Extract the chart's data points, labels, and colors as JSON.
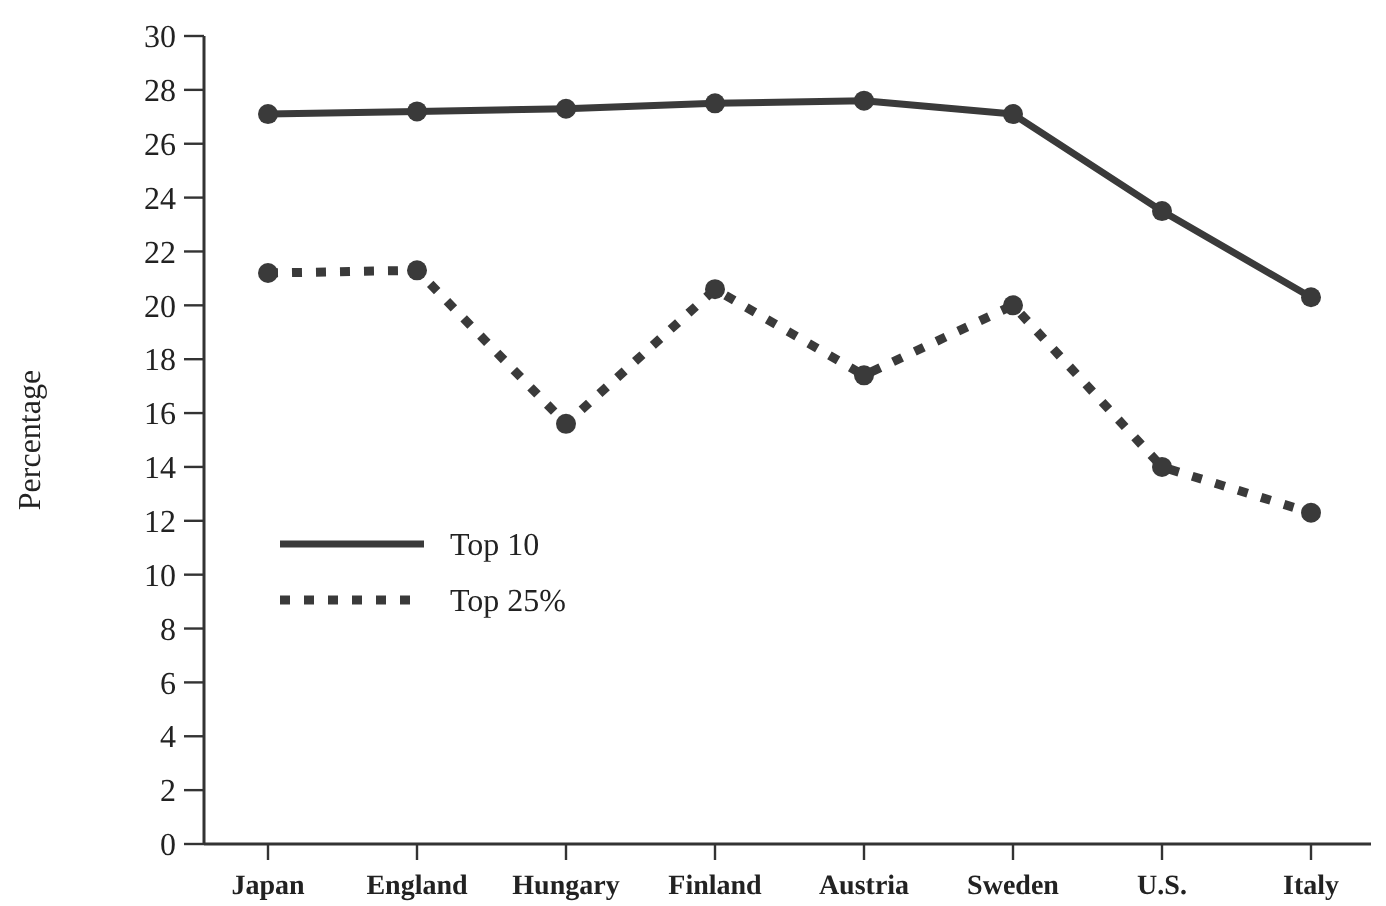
{
  "chart_data": {
    "type": "line",
    "ylabel": "Percentage",
    "categories": [
      "Japan",
      "England",
      "Hungary",
      "Finland",
      "Austria",
      "Sweden",
      "U.S.",
      "Italy"
    ],
    "series": [
      {
        "name": "Top 10",
        "color": "#3a3a3a",
        "line_style": "solid",
        "values": [
          27.1,
          27.2,
          27.3,
          27.5,
          27.6,
          27.1,
          23.5,
          20.3
        ]
      },
      {
        "name": "Top 25%",
        "color": "#3a3a3a",
        "line_style": "dotted",
        "values": [
          21.2,
          21.3,
          15.6,
          20.6,
          17.4,
          20.0,
          14.0,
          12.3
        ]
      }
    ],
    "ylim": [
      0,
      30
    ],
    "yticks": [
      0,
      2,
      4,
      6,
      8,
      10,
      12,
      14,
      16,
      18,
      20,
      22,
      24,
      26,
      28,
      30
    ],
    "marker": "circle",
    "grid": false,
    "legend": "left"
  }
}
